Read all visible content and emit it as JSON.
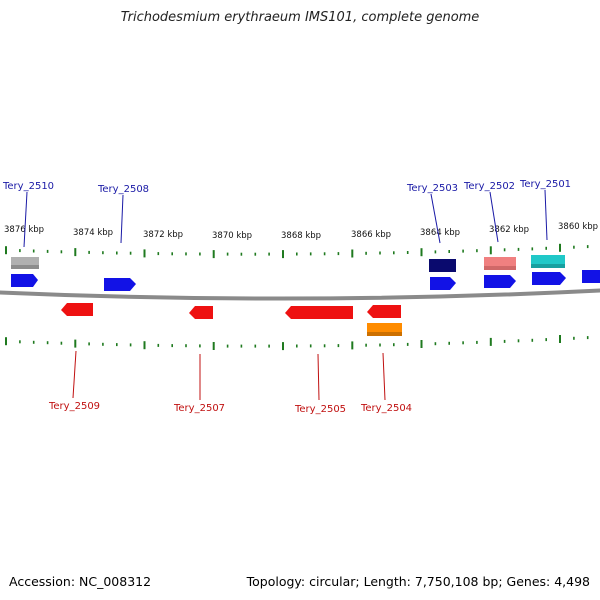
{
  "title": "Trichodesmium erythraeum IMS101, complete genome",
  "footer": {
    "accession": "Accession: NC_008312",
    "topology": "Topology: circular; Length: 7,750,108 bp; Genes: 4,498"
  },
  "colors": {
    "backbone": "#8a8a8a",
    "tick": "#1f7a1f",
    "label_top": "#1a1aa6",
    "label_bottom": "#c01010",
    "gene_blue": "#1212e6",
    "gene_red": "#ee1111",
    "gene_gray": "#b0b0b0",
    "gene_navy": "#0a0a6e",
    "gene_pink": "#f08080",
    "gene_cyan": "#20c8c8",
    "gene_orange": "#ff8c00"
  },
  "ticks": [
    {
      "label": "3876 kbp"
    },
    {
      "label": "3874 kbp"
    },
    {
      "label": "3872 kbp"
    },
    {
      "label": "3870 kbp"
    },
    {
      "label": "3868 kbp"
    },
    {
      "label": "3866 kbp"
    },
    {
      "label": "3864 kbp"
    },
    {
      "label": "3862 kbp"
    },
    {
      "label": "3860 kbp"
    }
  ],
  "genes_top_labeled": [
    {
      "name": "Tery_2510"
    },
    {
      "name": "Tery_2508"
    },
    {
      "name": "Tery_2503"
    },
    {
      "name": "Tery_2502"
    },
    {
      "name": "Tery_2501"
    }
  ],
  "genes_bottom_labeled": [
    {
      "name": "Tery_2509"
    },
    {
      "name": "Tery_2507"
    },
    {
      "name": "Tery_2505"
    },
    {
      "name": "Tery_2504"
    }
  ]
}
